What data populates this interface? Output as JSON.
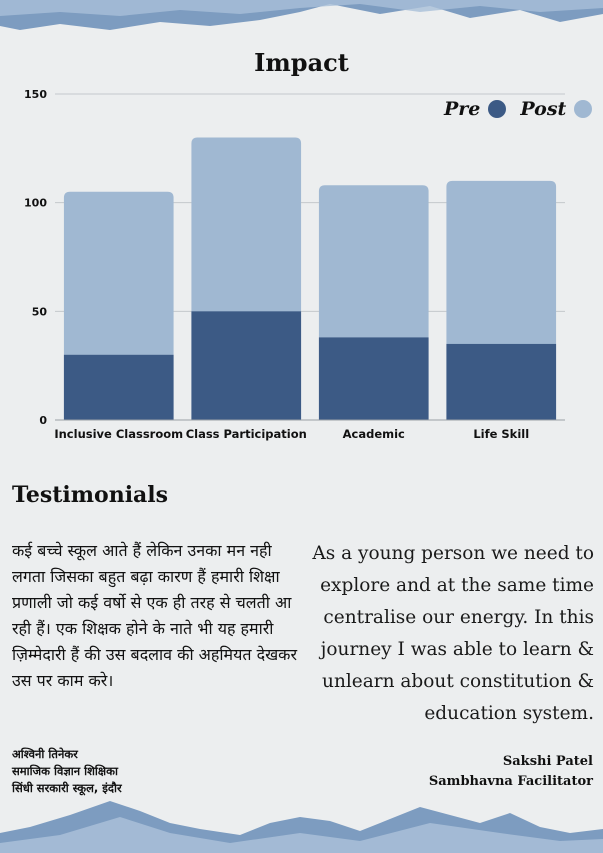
{
  "chart_data": {
    "type": "bar",
    "title": "Impact",
    "categories": [
      "Inclusive Classroom",
      "Class Participation",
      "Academic",
      "Life Skill"
    ],
    "series": [
      {
        "name": "Pre",
        "values": [
          30,
          50,
          38,
          35
        ],
        "color": "#3c5a85"
      },
      {
        "name": "Post",
        "values": [
          105,
          130,
          108,
          110
        ],
        "color": "#a0b8d2"
      }
    ],
    "yticks": [
      0,
      50,
      100,
      150
    ],
    "ylim": [
      0,
      150
    ],
    "grid": true,
    "legend_position": "top-right",
    "layout": "overlapping"
  },
  "testimonials": {
    "heading": "Testimonials",
    "hindi_quote": "कई बच्चे स्कूल आते हैं लेकिन उनका मन नही लगता जिसका बहुत बढ़ा कारण हैं हमारी शिक्षा प्रणाली जो कई वर्षो से एक ही तरह से चलती आ रही हैं। एक शिक्षक होने के नाते भी यह हमारी ज़िम्मेदारी हैं की उस बदलाव की अहमियत देखकर उस पर काम करे।",
    "hindi_author": "अश्विनी तिनेकर",
    "hindi_role": "समाजिक विज्ञान शिक्षिका",
    "hindi_school": "सिंधी सरकारी स्कूल, इंदौर",
    "english_quote": "As a young person we need to explore and at the same time centralise our  energy. In this journey I was able to learn & unlearn about constitution & education system.",
    "english_author": "Sakshi Patel",
    "english_role": "Sambhavna Facilitator"
  },
  "colors": {
    "background": "#eceeef",
    "pre": "#3c5a85",
    "post": "#a0b8d2",
    "deco": "#7d9cc0"
  }
}
